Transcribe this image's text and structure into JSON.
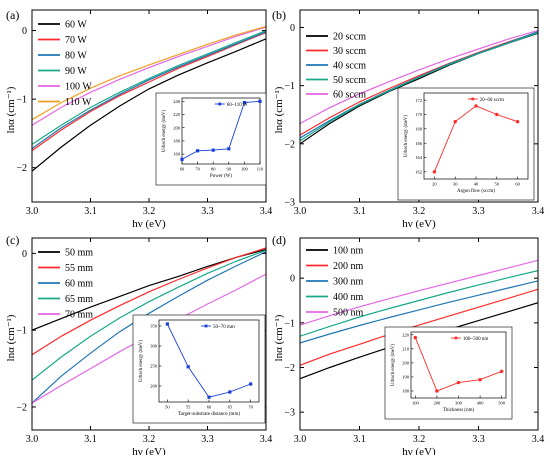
{
  "figure": {
    "panels": [
      "(a)",
      "(b)",
      "(c)",
      "(d)"
    ]
  },
  "chart_data": [
    {
      "panel": "(a)",
      "type": "line",
      "xlabel": "hν (eV)",
      "ylabel": "lnα (cm⁻¹)",
      "xlim": [
        3.0,
        3.4
      ],
      "ylim": [
        -2.5,
        0.3
      ],
      "xticks": [
        3.0,
        3.1,
        3.2,
        3.3,
        3.4
      ],
      "yticks": [
        -2,
        -1,
        0
      ],
      "legend_position": "top-left",
      "series": [
        {
          "name": "60 W",
          "color": "#000000",
          "x": [
            3.0,
            3.05,
            3.1,
            3.15,
            3.2,
            3.25,
            3.3,
            3.35,
            3.4
          ],
          "values": [
            -2.05,
            -1.7,
            -1.38,
            -1.1,
            -0.85,
            -0.65,
            -0.47,
            -0.3,
            -0.12
          ]
        },
        {
          "name": "70 W",
          "color": "#ff2a2a",
          "x": [
            3.0,
            3.05,
            3.1,
            3.15,
            3.2,
            3.25,
            3.3,
            3.35,
            3.4
          ],
          "values": [
            -1.75,
            -1.45,
            -1.18,
            -0.95,
            -0.75,
            -0.55,
            -0.38,
            -0.2,
            -0.03
          ]
        },
        {
          "name": "80 W",
          "color": "#1f77b4",
          "x": [
            3.0,
            3.05,
            3.1,
            3.15,
            3.2,
            3.25,
            3.3,
            3.35,
            3.4
          ],
          "values": [
            -1.72,
            -1.42,
            -1.16,
            -0.93,
            -0.72,
            -0.53,
            -0.36,
            -0.19,
            -0.02
          ]
        },
        {
          "name": "90 W",
          "color": "#18a88a",
          "x": [
            3.0,
            3.05,
            3.1,
            3.15,
            3.2,
            3.25,
            3.3,
            3.35,
            3.4
          ],
          "values": [
            -1.66,
            -1.38,
            -1.12,
            -0.9,
            -0.7,
            -0.51,
            -0.34,
            -0.17,
            0.0
          ]
        },
        {
          "name": "100 W",
          "color": "#e566e5",
          "x": [
            3.0,
            3.05,
            3.1,
            3.15,
            3.2,
            3.25,
            3.3,
            3.35,
            3.4
          ],
          "values": [
            -1.38,
            -1.12,
            -0.9,
            -0.71,
            -0.54,
            -0.38,
            -0.23,
            -0.08,
            0.05
          ]
        },
        {
          "name": "110 W",
          "color": "#f0a020",
          "x": [
            3.0,
            3.05,
            3.1,
            3.15,
            3.2,
            3.25,
            3.3,
            3.35,
            3.4
          ],
          "values": [
            -1.3,
            -1.05,
            -0.84,
            -0.66,
            -0.5,
            -0.35,
            -0.2,
            -0.06,
            0.06
          ]
        }
      ],
      "inset": {
        "type": "line",
        "color": "#1a3fd6",
        "legend": "60~110 W",
        "xlabel": "Power (W)",
        "ylabel": "Urbach energy (meV)",
        "xlim": [
          60,
          110
        ],
        "ylim": [
          145,
          245
        ],
        "xticks": [
          60,
          70,
          80,
          90,
          100,
          110
        ],
        "yticks": [
          160,
          180,
          200,
          220,
          240
        ],
        "x": [
          60,
          70,
          80,
          90,
          100,
          110
        ],
        "values": [
          152,
          165,
          166,
          168,
          238,
          240
        ]
      }
    },
    {
      "panel": "(b)",
      "type": "line",
      "xlabel": "hν (eV)",
      "ylabel": "lnα (cm⁻¹)",
      "xlim": [
        3.0,
        3.4
      ],
      "ylim": [
        -3.0,
        0.3
      ],
      "xticks": [
        3.0,
        3.1,
        3.2,
        3.3,
        3.4
      ],
      "yticks": [
        -3,
        -2,
        -1,
        0
      ],
      "legend_position": "top-left",
      "series": [
        {
          "name": "20 sccm",
          "color": "#000000",
          "x": [
            3.0,
            3.05,
            3.1,
            3.15,
            3.2,
            3.25,
            3.3,
            3.35,
            3.4
          ],
          "values": [
            -2.0,
            -1.65,
            -1.35,
            -1.1,
            -0.88,
            -0.65,
            -0.45,
            -0.27,
            -0.1
          ]
        },
        {
          "name": "30 sccm",
          "color": "#ff2a2a",
          "x": [
            3.0,
            3.05,
            3.1,
            3.15,
            3.2,
            3.25,
            3.3,
            3.35,
            3.4
          ],
          "values": [
            -1.85,
            -1.55,
            -1.28,
            -1.05,
            -0.83,
            -0.62,
            -0.43,
            -0.25,
            -0.08
          ]
        },
        {
          "name": "40 sccm",
          "color": "#1f77b4",
          "x": [
            3.0,
            3.05,
            3.1,
            3.15,
            3.2,
            3.25,
            3.3,
            3.35,
            3.4
          ],
          "values": [
            -1.9,
            -1.6,
            -1.32,
            -1.08,
            -0.85,
            -0.63,
            -0.44,
            -0.26,
            -0.07
          ]
        },
        {
          "name": "50 sccm",
          "color": "#18a88a",
          "x": [
            3.0,
            3.05,
            3.1,
            3.15,
            3.2,
            3.25,
            3.3,
            3.35,
            3.4
          ],
          "values": [
            -1.95,
            -1.62,
            -1.33,
            -1.09,
            -0.86,
            -0.64,
            -0.45,
            -0.27,
            -0.09
          ]
        },
        {
          "name": "60 sccm",
          "color": "#e566e5",
          "x": [
            3.0,
            3.05,
            3.1,
            3.15,
            3.2,
            3.25,
            3.3,
            3.35,
            3.4
          ],
          "values": [
            -1.65,
            -1.38,
            -1.14,
            -0.93,
            -0.73,
            -0.54,
            -0.37,
            -0.2,
            -0.05
          ]
        }
      ],
      "inset": {
        "type": "line",
        "color": "#ff2a2a",
        "legend": "20~60 sccm",
        "xlabel": "Argon flow (sccm)",
        "ylabel": "Urbach energy (meV)",
        "xlim": [
          15,
          65
        ],
        "ylim": [
          161,
          173
        ],
        "xticks": [
          20,
          30,
          40,
          50,
          60
        ],
        "yticks": [
          162,
          164,
          166,
          168,
          170,
          172
        ],
        "x": [
          20,
          30,
          40,
          50,
          60
        ],
        "values": [
          162.0,
          169.0,
          171.2,
          170.0,
          169.0
        ]
      }
    },
    {
      "panel": "(c)",
      "type": "line",
      "xlabel": "hν (eV)",
      "ylabel": "lnα (cm⁻¹)",
      "xlim": [
        3.0,
        3.4
      ],
      "ylim": [
        -2.3,
        0.2
      ],
      "xticks": [
        3.0,
        3.1,
        3.2,
        3.3,
        3.4
      ],
      "yticks": [
        -2,
        -1,
        0
      ],
      "legend_position": "top-left",
      "series": [
        {
          "name": "50 mm",
          "color": "#000000",
          "x": [
            3.0,
            3.05,
            3.1,
            3.15,
            3.2,
            3.25,
            3.3,
            3.35,
            3.4
          ],
          "values": [
            -1.0,
            -0.85,
            -0.7,
            -0.56,
            -0.42,
            -0.3,
            -0.17,
            -0.05,
            0.05
          ]
        },
        {
          "name": "55 mm",
          "color": "#ff2a2a",
          "x": [
            3.0,
            3.05,
            3.1,
            3.15,
            3.2,
            3.25,
            3.3,
            3.35,
            3.4
          ],
          "values": [
            -1.32,
            -1.08,
            -0.87,
            -0.68,
            -0.5,
            -0.34,
            -0.19,
            -0.05,
            0.07
          ]
        },
        {
          "name": "60 mm",
          "color": "#1f77b4",
          "x": [
            3.0,
            3.05,
            3.1,
            3.15,
            3.2,
            3.25,
            3.3,
            3.35,
            3.4
          ],
          "values": [
            -1.95,
            -1.6,
            -1.3,
            -1.02,
            -0.78,
            -0.56,
            -0.35,
            -0.16,
            0.02
          ]
        },
        {
          "name": "65 mm",
          "color": "#18a88a",
          "x": [
            3.0,
            3.05,
            3.1,
            3.15,
            3.2,
            3.25,
            3.3,
            3.35,
            3.4
          ],
          "values": [
            -1.65,
            -1.35,
            -1.08,
            -0.84,
            -0.63,
            -0.44,
            -0.26,
            -0.1,
            0.04
          ]
        },
        {
          "name": "70 mm",
          "color": "#e566e5",
          "x": [
            3.0,
            3.05,
            3.1,
            3.15,
            3.2,
            3.25,
            3.3,
            3.35,
            3.4
          ],
          "values": [
            -1.95,
            -1.72,
            -1.5,
            -1.28,
            -1.07,
            -0.86,
            -0.66,
            -0.47,
            -0.27
          ]
        }
      ],
      "inset": {
        "type": "line",
        "color": "#1a3fd6",
        "legend": "50~70 mm",
        "xlabel": "Target-substrate distance (mm)",
        "ylabel": "Urbach energy (meV)",
        "xlim": [
          48,
          72
        ],
        "ylim": [
          160,
          365
        ],
        "xticks": [
          50,
          55,
          60,
          65,
          70
        ],
        "yticks": [
          200,
          250,
          300,
          350
        ],
        "x": [
          50,
          55,
          60,
          65,
          70
        ],
        "values": [
          355,
          248,
          172,
          185,
          205
        ]
      }
    },
    {
      "panel": "(d)",
      "type": "line",
      "xlabel": "hν (eV)",
      "ylabel": "lnα (cm⁻¹)",
      "xlim": [
        3.0,
        3.4
      ],
      "ylim": [
        -3.4,
        0.9
      ],
      "xticks": [
        3.0,
        3.1,
        3.2,
        3.3,
        3.4
      ],
      "yticks": [
        -3,
        -2,
        -1,
        0
      ],
      "legend_position": "top-left",
      "series": [
        {
          "name": "100 nm",
          "color": "#000000",
          "x": [
            3.0,
            3.05,
            3.1,
            3.15,
            3.2,
            3.25,
            3.3,
            3.35,
            3.4
          ],
          "values": [
            -2.25,
            -2.0,
            -1.77,
            -1.55,
            -1.35,
            -1.15,
            -0.95,
            -0.75,
            -0.55
          ]
        },
        {
          "name": "200 nm",
          "color": "#ff2a2a",
          "x": [
            3.0,
            3.05,
            3.1,
            3.15,
            3.2,
            3.25,
            3.3,
            3.35,
            3.4
          ],
          "values": [
            -1.95,
            -1.7,
            -1.48,
            -1.26,
            -1.05,
            -0.85,
            -0.65,
            -0.45,
            -0.25
          ]
        },
        {
          "name": "300 nm",
          "color": "#1f77b4",
          "x": [
            3.0,
            3.05,
            3.1,
            3.15,
            3.2,
            3.25,
            3.3,
            3.35,
            3.4
          ],
          "values": [
            -1.45,
            -1.25,
            -1.06,
            -0.88,
            -0.71,
            -0.54,
            -0.38,
            -0.22,
            -0.06
          ]
        },
        {
          "name": "400 nm",
          "color": "#18a88a",
          "x": [
            3.0,
            3.05,
            3.1,
            3.15,
            3.2,
            3.25,
            3.3,
            3.35,
            3.4
          ],
          "values": [
            -1.3,
            -1.08,
            -0.87,
            -0.68,
            -0.5,
            -0.32,
            -0.15,
            0.01,
            0.17
          ]
        },
        {
          "name": "500 nm",
          "color": "#e566e5",
          "x": [
            3.0,
            3.05,
            3.1,
            3.15,
            3.2,
            3.25,
            3.3,
            3.35,
            3.4
          ],
          "values": [
            -1.05,
            -0.84,
            -0.64,
            -0.46,
            -0.28,
            -0.11,
            0.06,
            0.23,
            0.4
          ]
        }
      ],
      "inset": {
        "type": "line",
        "color": "#ff2a2a",
        "legend": "100~500 nm",
        "xlabel": "Thickness (nm)",
        "ylabel": "Urbach energy (meV)",
        "xlim": [
          80,
          520
        ],
        "ylim": [
          175,
          222
        ],
        "xticks": [
          100,
          200,
          300,
          400,
          500
        ],
        "yticks": [
          180,
          190,
          200,
          210,
          220
        ],
        "x": [
          100,
          200,
          300,
          400,
          500
        ],
        "values": [
          218,
          180,
          186,
          188,
          194
        ]
      }
    }
  ]
}
